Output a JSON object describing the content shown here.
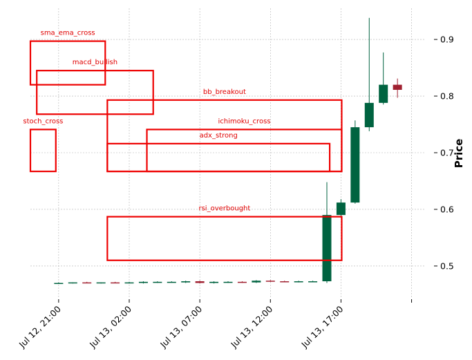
{
  "chart_data": {
    "type": "candlestick",
    "ylabel": "Price",
    "ylim": [
      0.445,
      0.955
    ],
    "y_ticks": [
      0.5,
      0.6,
      0.7,
      0.8,
      0.9
    ],
    "y_tick_labels": [
      "0.5",
      "0.6",
      "0.7",
      "0.8",
      "0.9"
    ],
    "x_ticks": [
      {
        "label": "Jul 12, 21:00",
        "index": 2
      },
      {
        "label": "Jul 13, 02:00",
        "index": 7
      },
      {
        "label": "Jul 13, 07:00",
        "index": 12
      },
      {
        "label": "Jul 13, 12:00",
        "index": 17
      },
      {
        "label": "Jul 13, 17:00",
        "index": 22
      },
      {
        "label": "",
        "index": 27
      }
    ],
    "x_range": [
      0,
      28
    ],
    "grid": true,
    "up_color": "#006340",
    "down_color": "#a02030",
    "box_color": "#ee0000",
    "candles": [
      {
        "o": 0.47,
        "h": 0.471,
        "l": 0.469,
        "c": 0.47
      },
      {
        "o": 0.47,
        "h": 0.471,
        "l": 0.469,
        "c": 0.471
      },
      {
        "o": 0.471,
        "h": 0.472,
        "l": 0.47,
        "c": 0.47
      },
      {
        "o": 0.47,
        "h": 0.471,
        "l": 0.469,
        "c": 0.471
      },
      {
        "o": 0.471,
        "h": 0.472,
        "l": 0.47,
        "c": 0.47
      },
      {
        "o": 0.47,
        "h": 0.472,
        "l": 0.469,
        "c": 0.471
      },
      {
        "o": 0.47,
        "h": 0.473,
        "l": 0.469,
        "c": 0.472
      },
      {
        "o": 0.471,
        "h": 0.473,
        "l": 0.47,
        "c": 0.472
      },
      {
        "o": 0.472,
        "h": 0.473,
        "l": 0.471,
        "c": 0.472
      },
      {
        "o": 0.471,
        "h": 0.474,
        "l": 0.47,
        "c": 0.473
      },
      {
        "o": 0.473,
        "h": 0.474,
        "l": 0.469,
        "c": 0.47
      },
      {
        "o": 0.47,
        "h": 0.473,
        "l": 0.469,
        "c": 0.472
      },
      {
        "o": 0.471,
        "h": 0.473,
        "l": 0.47,
        "c": 0.472
      },
      {
        "o": 0.472,
        "h": 0.473,
        "l": 0.47,
        "c": 0.471
      },
      {
        "o": 0.471,
        "h": 0.475,
        "l": 0.47,
        "c": 0.474
      },
      {
        "o": 0.474,
        "h": 0.475,
        "l": 0.472,
        "c": 0.473
      },
      {
        "o": 0.473,
        "h": 0.474,
        "l": 0.472,
        "c": 0.472
      },
      {
        "o": 0.472,
        "h": 0.474,
        "l": 0.471,
        "c": 0.473
      },
      {
        "o": 0.473,
        "h": 0.474,
        "l": 0.472,
        "c": 0.473
      },
      {
        "o": 0.473,
        "h": 0.648,
        "l": 0.47,
        "c": 0.59
      },
      {
        "o": 0.59,
        "h": 0.618,
        "l": 0.585,
        "c": 0.612
      },
      {
        "o": 0.612,
        "h": 0.757,
        "l": 0.61,
        "c": 0.745
      },
      {
        "o": 0.745,
        "h": 0.938,
        "l": 0.738,
        "c": 0.788
      },
      {
        "o": 0.788,
        "h": 0.877,
        "l": 0.785,
        "c": 0.82
      },
      {
        "o": 0.82,
        "h": 0.831,
        "l": 0.797,
        "c": 0.811
      }
    ],
    "annotations": [
      {
        "label": "sma_ema_cross",
        "x0": 0.0,
        "x1": 5.3,
        "y0": 0.82,
        "y1": 0.897
      },
      {
        "label": "macd_bullish",
        "x0": 0.45,
        "x1": 8.7,
        "y0": 0.768,
        "y1": 0.845
      },
      {
        "label": "bb_breakout",
        "x0": 5.45,
        "x1": 22.05,
        "y0": 0.667,
        "y1": 0.793
      },
      {
        "label": "stoch_cross",
        "x0": 0.0,
        "x1": 1.8,
        "y0": 0.667,
        "y1": 0.741
      },
      {
        "label": "ichimoku_cross",
        "x0": 8.25,
        "x1": 22.05,
        "y0": 0.667,
        "y1": 0.741
      },
      {
        "label": "adx_strong",
        "x0": 5.45,
        "x1": 21.2,
        "y0": 0.667,
        "y1": 0.716
      },
      {
        "label": "rsi_overbought",
        "x0": 5.45,
        "x1": 22.05,
        "y0": 0.51,
        "y1": 0.587
      }
    ]
  }
}
